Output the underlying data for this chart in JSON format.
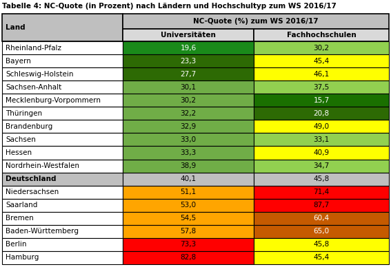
{
  "title": "Tabelle 4: NC-Quote (in Prozent) nach Ländern und Hochschultyp zum WS 2016/17",
  "col_header_main": "NC-Quote (%) zum WS 2016/17",
  "col_header_land": "Land",
  "col_header_uni": "Universitäten",
  "col_header_fh": "Fachhochschulen",
  "rows": [
    {
      "land": "Rheinland-Pfalz",
      "uni": "19,6",
      "fh": "30,2",
      "uni_color": "#1a8a1a",
      "fh_color": "#92d050",
      "land_bold": false
    },
    {
      "land": "Bayern",
      "uni": "23,3",
      "fh": "45,4",
      "uni_color": "#2d6a04",
      "fh_color": "#ffff00",
      "land_bold": false
    },
    {
      "land": "Schleswig-Holstein",
      "uni": "27,7",
      "fh": "46,1",
      "uni_color": "#2d6a04",
      "fh_color": "#ffff00",
      "land_bold": false
    },
    {
      "land": "Sachsen-Anhalt",
      "uni": "30,1",
      "fh": "37,5",
      "uni_color": "#70ad47",
      "fh_color": "#92d050",
      "land_bold": false
    },
    {
      "land": "Mecklenburg-Vorpommern",
      "uni": "30,2",
      "fh": "15,7",
      "uni_color": "#70ad47",
      "fh_color": "#1a7000",
      "land_bold": false
    },
    {
      "land": "Thüringen",
      "uni": "32,2",
      "fh": "20,8",
      "uni_color": "#70ad47",
      "fh_color": "#2d6a04",
      "land_bold": false
    },
    {
      "land": "Brandenburg",
      "uni": "32,9",
      "fh": "49,0",
      "uni_color": "#70ad47",
      "fh_color": "#ffff00",
      "land_bold": false
    },
    {
      "land": "Sachsen",
      "uni": "33,0",
      "fh": "33,1",
      "uni_color": "#70ad47",
      "fh_color": "#92d050",
      "land_bold": false
    },
    {
      "land": "Hessen",
      "uni": "33,3",
      "fh": "40,9",
      "uni_color": "#70ad47",
      "fh_color": "#ffff00",
      "land_bold": false
    },
    {
      "land": "Nordrhein-Westfalen",
      "uni": "38,9",
      "fh": "34,7",
      "uni_color": "#70ad47",
      "fh_color": "#92d050",
      "land_bold": false
    },
    {
      "land": "Deutschland",
      "uni": "40,1",
      "fh": "45,8",
      "uni_color": "#bfbfbf",
      "fh_color": "#bfbfbf",
      "land_bold": true
    },
    {
      "land": "Niedersachsen",
      "uni": "51,1",
      "fh": "71,4",
      "uni_color": "#ffa500",
      "fh_color": "#ff0000",
      "land_bold": false
    },
    {
      "land": "Saarland",
      "uni": "53,0",
      "fh": "87,7",
      "uni_color": "#ffa500",
      "fh_color": "#ff0000",
      "land_bold": false
    },
    {
      "land": "Bremen",
      "uni": "54,5",
      "fh": "60,4",
      "uni_color": "#ffa500",
      "fh_color": "#c55a00",
      "land_bold": false
    },
    {
      "land": "Baden-Württemberg",
      "uni": "57,8",
      "fh": "65,0",
      "uni_color": "#ffa500",
      "fh_color": "#c55a00",
      "land_bold": false
    },
    {
      "land": "Berlin",
      "uni": "73,3",
      "fh": "45,8",
      "uni_color": "#ff0000",
      "fh_color": "#ffff00",
      "land_bold": false
    },
    {
      "land": "Hamburg",
      "uni": "82,8",
      "fh": "45,4",
      "uni_color": "#ff0000",
      "fh_color": "#ffff00",
      "land_bold": false
    }
  ],
  "header_bg": "#bfbfbf",
  "subheader_bg": "#d9d9d9",
  "land_col_bg": "#ffffff",
  "land_bold_bg": "#bfbfbf",
  "title_fontsize": 7.5,
  "header_fontsize": 7.5,
  "cell_fontsize": 7.5,
  "fig_width": 5.67,
  "fig_height": 3.88,
  "dpi": 100
}
